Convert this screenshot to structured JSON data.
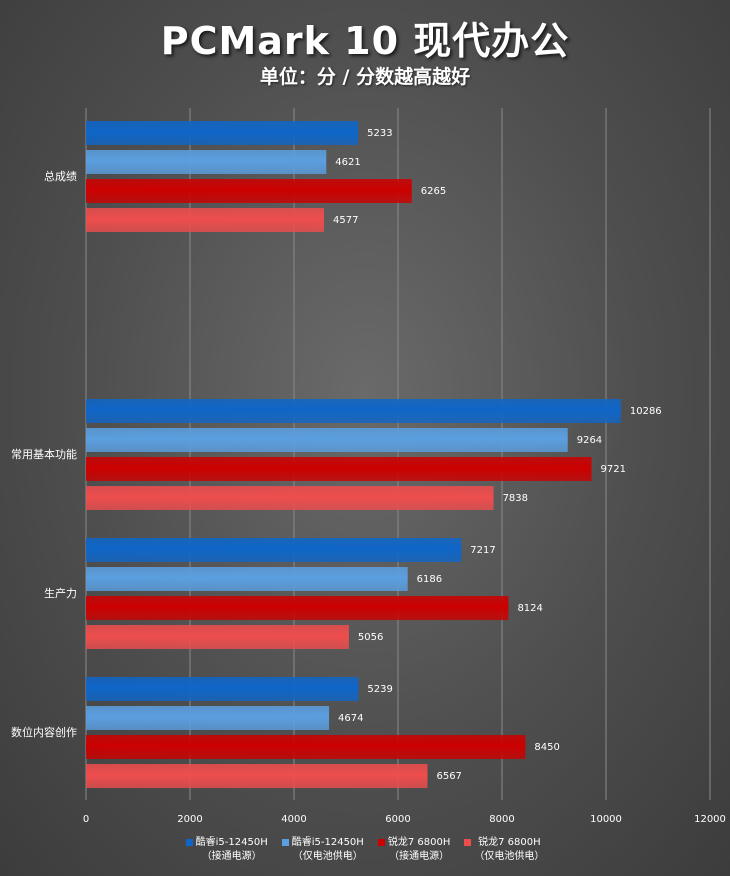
{
  "chart_data": {
    "type": "bar",
    "orientation": "horizontal",
    "title": "PCMark 10 现代办公",
    "subtitle": "单位：分 / 分数越高越好",
    "categories": [
      "总成绩",
      "常用基本功能",
      "生产力",
      "数位内容创作"
    ],
    "series": [
      {
        "name": "酷睿i5-12450H",
        "name_line2": "（接通电源）",
        "color": "#0f66c8",
        "values": [
          5233,
          10286,
          7217,
          5239
        ]
      },
      {
        "name": "酷睿i5-12450H",
        "name_line2": "（仅电池供电）",
        "color": "#5b9fe0",
        "values": [
          4621,
          9264,
          6186,
          4674
        ]
      },
      {
        "name": "锐龙7 6800H",
        "name_line2": "（接通电源）",
        "color": "#cc0000",
        "values": [
          6265,
          9721,
          8124,
          8450
        ]
      },
      {
        "name": "锐龙7 6800H",
        "name_line2": "（仅电池供电）",
        "color": "#ee4d4d",
        "values": [
          4577,
          7838,
          5056,
          6567
        ]
      }
    ],
    "x_ticks": [
      0,
      2000,
      4000,
      6000,
      8000,
      10000,
      12000
    ],
    "xlim": [
      0,
      12000
    ],
    "grid": true,
    "legend_position": "bottom"
  }
}
